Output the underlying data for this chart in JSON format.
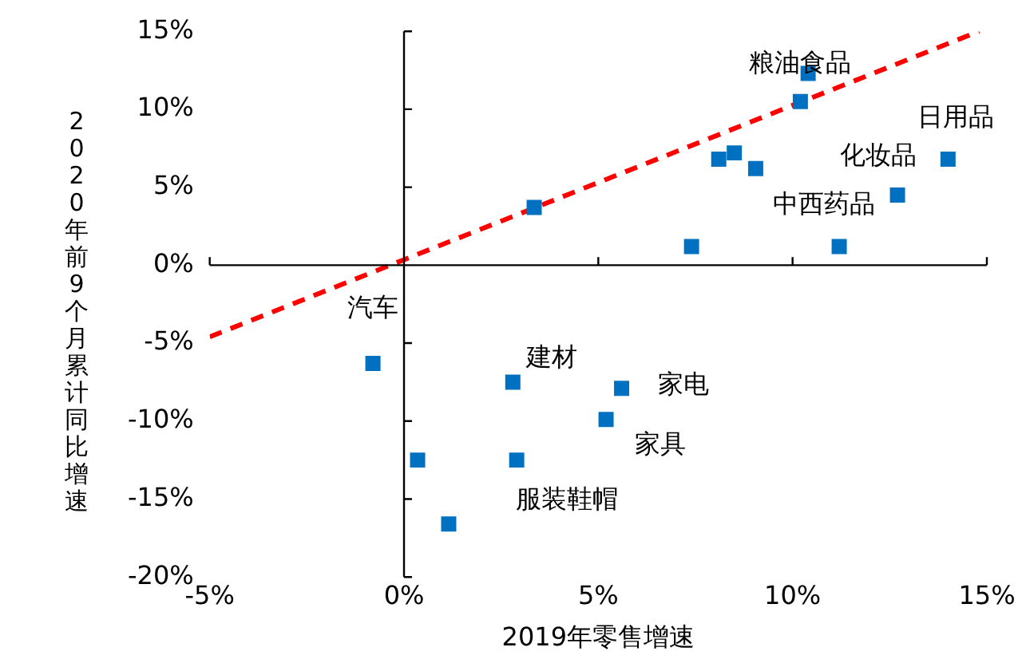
{
  "chart_data": {
    "type": "scatter",
    "xlabel": "2019年零售增速",
    "ylabel": "2020年前9个月累计同比增速",
    "xlim": [
      -5,
      15
    ],
    "xticks": [
      {
        "value": -5,
        "label": "-5%"
      },
      {
        "value": 0,
        "label": "0%"
      },
      {
        "value": 5,
        "label": "5%"
      },
      {
        "value": 10,
        "label": "10%"
      },
      {
        "value": 15,
        "label": "15%"
      }
    ],
    "ylim": [
      -20,
      15
    ],
    "yticks": [
      {
        "value": -20,
        "label": "-20%"
      },
      {
        "value": -15,
        "label": "-15%"
      },
      {
        "value": -10,
        "label": "-10%"
      },
      {
        "value": -5,
        "label": "-5%"
      },
      {
        "value": 0,
        "label": "0%"
      },
      {
        "value": 5,
        "label": "5%"
      },
      {
        "value": 10,
        "label": "10%"
      },
      {
        "value": 15,
        "label": "15%"
      }
    ],
    "marker": "square",
    "series": [
      {
        "color": "#0070c0",
        "x": [
          3.35,
          7.4,
          8.1,
          8.5,
          9.05,
          10.2,
          10.4,
          11.2,
          12.7,
          14.0,
          -0.8,
          2.8,
          5.6,
          5.2,
          0.35,
          2.9,
          1.15
        ],
        "values": [
          3.7,
          1.2,
          6.8,
          7.2,
          6.2,
          10.5,
          12.3,
          1.2,
          4.5,
          6.8,
          -6.3,
          -7.5,
          -7.9,
          -9.9,
          -12.5,
          -12.5,
          -16.6
        ]
      },
      {
        "type": "line",
        "color": "#ff0000",
        "line_style": "dashed",
        "marker": "none",
        "x": [
          -5,
          14.8
        ],
        "values": [
          -4.6,
          15
        ]
      }
    ],
    "annotations": [
      "粮油食品",
      "日用品",
      "化妆品",
      "中西药品",
      "汽车",
      "建材",
      "家电",
      "家具",
      "服装鞋帽"
    ]
  }
}
